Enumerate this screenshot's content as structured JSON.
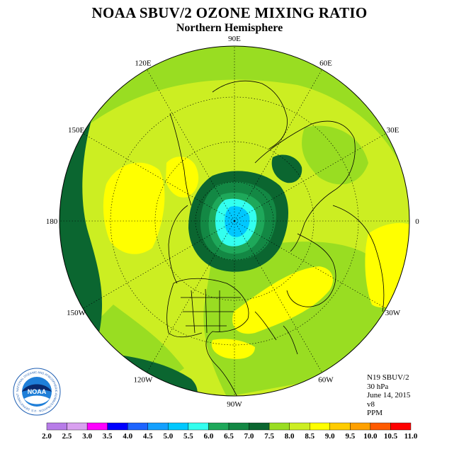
{
  "title": "NOAA SBUV/2 OZONE MIXING RATIO",
  "subtitle": "Northern Hemisphere",
  "longitude_labels": [
    "90E",
    "60E",
    "30E",
    "0",
    "30W",
    "60W",
    "90W",
    "120W",
    "150W",
    "180",
    "150E",
    "120E"
  ],
  "info": {
    "instrument": "N19 SBUV/2",
    "level": "30 hPa",
    "date": "June 14, 2015",
    "version": "v8",
    "units": "PPM"
  },
  "colorbar": {
    "ticks": [
      "2.0",
      "2.5",
      "3.0",
      "3.5",
      "4.0",
      "4.5",
      "5.0",
      "5.5",
      "6.0",
      "6.5",
      "7.0",
      "7.5",
      "8.0",
      "8.5",
      "9.0",
      "9.5",
      "10.0",
      "10.5",
      "11.0"
    ],
    "colors": [
      "#b77ce8",
      "#d9a0f0",
      "#ff00ff",
      "#0000ff",
      "#1e64ff",
      "#14a0ff",
      "#00c8ff",
      "#33ffee",
      "#1ea85a",
      "#138844",
      "#0b6630",
      "#99dd22",
      "#ccee22",
      "#ffff00",
      "#ffcc00",
      "#ffa000",
      "#ff5a00",
      "#ff0000",
      "#8b5a3a"
    ]
  },
  "logo": {
    "name": "NOAA",
    "ring_text": "NATIONAL OCEANIC AND ATMOSPHERIC ADMINISTRATION · U.S. DEPARTMENT OF COMMERCE"
  }
}
